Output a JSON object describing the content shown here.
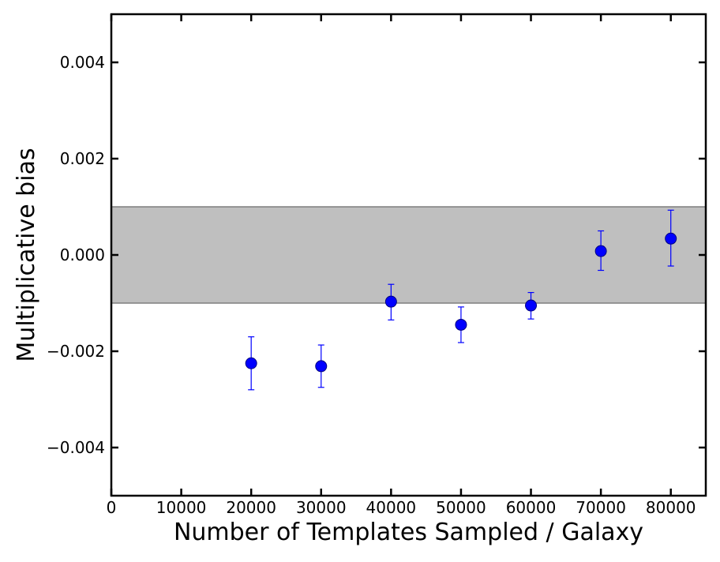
{
  "chart_data": {
    "type": "scatter",
    "title": "",
    "xlabel": "Number of Templates Sampled / Galaxy",
    "ylabel": "Multiplicative bias",
    "xlim": [
      0,
      85000
    ],
    "ylim": [
      -0.005,
      0.005
    ],
    "grid": false,
    "x_ticks": [
      0,
      10000,
      20000,
      30000,
      40000,
      50000,
      60000,
      70000,
      80000
    ],
    "x_tick_labels": [
      "0",
      "10000",
      "20000",
      "30000",
      "40000",
      "50000",
      "60000",
      "70000",
      "80000"
    ],
    "y_ticks": [
      -0.004,
      -0.002,
      0.0,
      0.002,
      0.004
    ],
    "y_tick_labels": [
      "−0.004",
      "−0.002",
      "0.000",
      "0.002",
      "0.004"
    ],
    "band": {
      "y_low": -0.001,
      "y_high": 0.001,
      "color": "#bfbfbf",
      "edge_color": "#7f7f7f"
    },
    "series": [
      {
        "color": "#0000ff",
        "points": [
          {
            "x": 20000,
            "y": -0.00225,
            "err_low": -0.0028,
            "err_high": -0.0017
          },
          {
            "x": 30000,
            "y": -0.00231,
            "err_low": -0.00275,
            "err_high": -0.00187
          },
          {
            "x": 40000,
            "y": -0.00097,
            "err_low": -0.00135,
            "err_high": -0.00061
          },
          {
            "x": 50000,
            "y": -0.00145,
            "err_low": -0.00182,
            "err_high": -0.00108
          },
          {
            "x": 60000,
            "y": -0.00105,
            "err_low": -0.00133,
            "err_high": -0.00078
          },
          {
            "x": 70000,
            "y": 8e-05,
            "err_low": -0.00032,
            "err_high": 0.0005
          },
          {
            "x": 80000,
            "y": 0.00034,
            "err_low": -0.00023,
            "err_high": 0.00093
          }
        ]
      }
    ]
  }
}
